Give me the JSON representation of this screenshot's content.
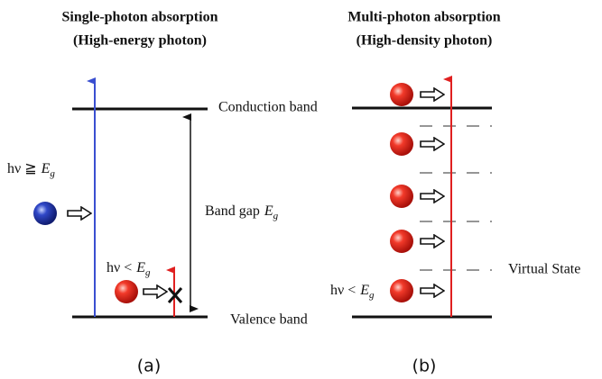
{
  "panel_a": {
    "title": "Single-photon absorption",
    "subtitle": "(High-energy photon)",
    "caption": "(a)",
    "conduction_band": "Conduction band",
    "valence_band": "Valence band",
    "band_gap": {
      "text": "Band gap",
      "symbol": "E",
      "subscript": "g"
    },
    "high_photon": {
      "text": "hν ≧",
      "symbol": "E",
      "subscript": "g"
    },
    "low_photon": {
      "text": "hν <",
      "symbol": "E",
      "subscript": "g"
    }
  },
  "panel_b": {
    "title": "Multi-photon absorption",
    "subtitle": "(High-density photon)",
    "caption": "(b)",
    "virtual_state": "Virtual State",
    "low_photon": {
      "text": "hν <",
      "symbol": "E",
      "subscript": "g"
    }
  }
}
